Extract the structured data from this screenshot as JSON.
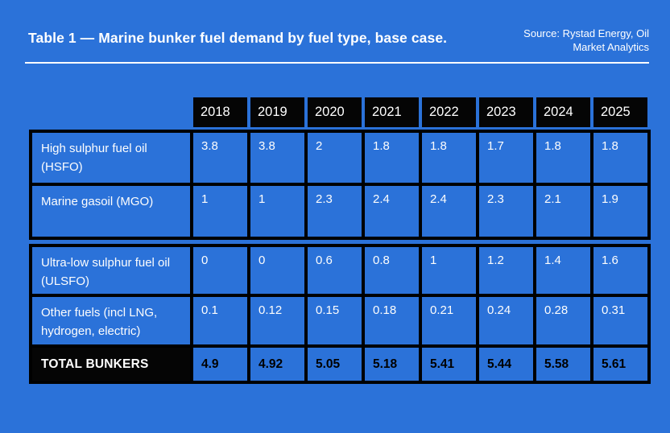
{
  "page": {
    "background_color": "#2B72D9",
    "table_header_color": "#050505",
    "border_color": "#000000",
    "text_color": "#FFFFFF",
    "title": "Table 1 — Marine bunker fuel demand by fuel type, base case.",
    "source": "Source: Rystad Energy, Oil\nMarket Analytics"
  },
  "table": {
    "years": [
      "2018",
      "2019",
      "2020",
      "2021",
      "2022",
      "2023",
      "2024",
      "2025"
    ],
    "sections": [
      {
        "rows": [
          {
            "label": "High sulphur fuel oil (HSFO)",
            "values": [
              "3.8",
              "3.8",
              "2",
              "1.8",
              "1.8",
              "1.7",
              "1.8",
              "1.8"
            ]
          },
          {
            "label": "Marine gasoil (MGO)",
            "values": [
              "1",
              "1",
              "2.3",
              "2.4",
              "2.4",
              "2.3",
              "2.1",
              "1.9"
            ]
          }
        ]
      },
      {
        "rows": [
          {
            "label": "Ultra-low sulphur fuel oil (ULSFO)",
            "values": [
              "0",
              "0",
              "0.6",
              "0.8",
              "1",
              "1.2",
              "1.4",
              "1.6"
            ]
          },
          {
            "label": "Other fuels (incl LNG, hydrogen, electric)",
            "values": [
              "0.1",
              "0.12",
              "0.15",
              "0.18",
              "0.21",
              "0.24",
              "0.28",
              "0.31"
            ]
          }
        ]
      }
    ],
    "total_row": {
      "label": "TOTAL BUNKERS",
      "values": [
        "4.9",
        "4.92",
        "5.05",
        "5.18",
        "5.41",
        "5.44",
        "5.58",
        "5.61"
      ]
    }
  },
  "chart_data": {
    "type": "table",
    "title": "Table 1 — Marine bunker fuel demand by fuel type, base case.",
    "source": "Source: Rystad Energy, Oil Market Analytics",
    "categories": [
      "2018",
      "2019",
      "2020",
      "2021",
      "2022",
      "2023",
      "2024",
      "2025"
    ],
    "series": [
      {
        "name": "High sulphur fuel oil (HSFO)",
        "values": [
          3.8,
          3.8,
          2,
          1.8,
          1.8,
          1.7,
          1.8,
          1.8
        ]
      },
      {
        "name": "Marine gasoil (MGO)",
        "values": [
          1,
          1,
          2.3,
          2.4,
          2.4,
          2.3,
          2.1,
          1.9
        ]
      },
      {
        "name": "Ultra-low sulphur fuel oil (ULSFO)",
        "values": [
          0,
          0,
          0.6,
          0.8,
          1,
          1.2,
          1.4,
          1.6
        ]
      },
      {
        "name": "Other fuels (incl LNG, hydrogen, electric)",
        "values": [
          0.1,
          0.12,
          0.15,
          0.18,
          0.21,
          0.24,
          0.28,
          0.31
        ]
      },
      {
        "name": "TOTAL BUNKERS",
        "values": [
          4.9,
          4.92,
          5.05,
          5.18,
          5.41,
          5.44,
          5.58,
          5.61
        ]
      }
    ]
  }
}
